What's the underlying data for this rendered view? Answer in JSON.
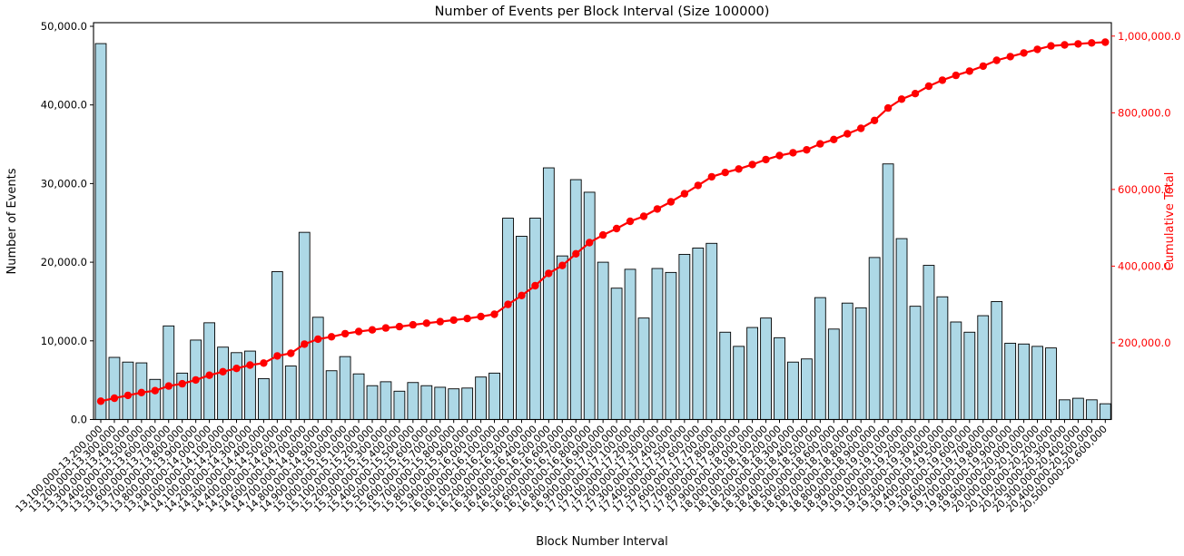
{
  "accent_colors": {
    "bar_fill": "#add8e6",
    "bar_edge": "#000000",
    "line_red": "#ff0000",
    "text": "#000000"
  },
  "chart_data": {
    "type": "bar",
    "combo": "bar+cumulative-line",
    "title": "Number of Events per Block Interval (Size 100000)",
    "xlabel": "Block Number Interval",
    "ylabel_left": "Number of Events",
    "ylabel_right": "Cumulative Total",
    "grid": false,
    "legend": "none",
    "ylim_left": [
      0,
      50460
    ],
    "ylim_right": [
      0,
      1035000
    ],
    "y_left_ticks": [
      {
        "value": 0,
        "label": "0.0"
      },
      {
        "value": 10000,
        "label": "10,000.0"
      },
      {
        "value": 20000,
        "label": "20,000.0"
      },
      {
        "value": 30000,
        "label": "30,000.0"
      },
      {
        "value": 40000,
        "label": "40,000.0"
      },
      {
        "value": 50000,
        "label": "50,000.0"
      }
    ],
    "y_right_ticks": [
      {
        "value": 200000,
        "label": "200,000.0"
      },
      {
        "value": 400000,
        "label": "400,000.0"
      },
      {
        "value": 600000,
        "label": "600,000.0"
      },
      {
        "value": 800000,
        "label": "800,000.0"
      },
      {
        "value": 1000000,
        "label": "1,000,000.0"
      }
    ],
    "categories": [
      "13,100,000-13,200,000",
      "13,200,000-13,300,000",
      "13,300,000-13,400,000",
      "13,400,000-13,500,000",
      "13,500,000-13,600,000",
      "13,600,000-13,700,000",
      "13,700,000-13,800,000",
      "13,800,000-13,900,000",
      "13,900,000-14,000,000",
      "14,000,000-14,100,000",
      "14,100,000-14,200,000",
      "14,200,000-14,300,000",
      "14,300,000-14,400,000",
      "14,400,000-14,500,000",
      "14,500,000-14,600,000",
      "14,600,000-14,700,000",
      "14,700,000-14,800,000",
      "14,800,000-14,900,000",
      "14,900,000-15,000,000",
      "15,000,000-15,100,000",
      "15,100,000-15,200,000",
      "15,200,000-15,300,000",
      "15,300,000-15,400,000",
      "15,400,000-15,500,000",
      "15,500,000-15,600,000",
      "15,600,000-15,700,000",
      "15,700,000-15,800,000",
      "15,800,000-15,900,000",
      "15,900,000-16,000,000",
      "16,000,000-16,100,000",
      "16,100,000-16,200,000",
      "16,200,000-16,300,000",
      "16,300,000-16,400,000",
      "16,400,000-16,500,000",
      "16,500,000-16,600,000",
      "16,600,000-16,700,000",
      "16,700,000-16,800,000",
      "16,800,000-16,900,000",
      "16,900,000-17,000,000",
      "17,000,000-17,100,000",
      "17,100,000-17,200,000",
      "17,200,000-17,300,000",
      "17,300,000-17,400,000",
      "17,400,000-17,500,000",
      "17,500,000-17,600,000",
      "17,600,000-17,700,000",
      "17,700,000-17,800,000",
      "17,800,000-17,900,000",
      "17,900,000-18,000,000",
      "18,000,000-18,100,000",
      "18,100,000-18,200,000",
      "18,200,000-18,300,000",
      "18,300,000-18,400,000",
      "18,400,000-18,500,000",
      "18,500,000-18,600,000",
      "18,600,000-18,700,000",
      "18,700,000-18,800,000",
      "18,800,000-18,900,000",
      "18,900,000-19,000,000",
      "19,000,000-19,100,000",
      "19,100,000-19,200,000",
      "19,200,000-19,300,000",
      "19,300,000-19,400,000",
      "19,400,000-19,500,000",
      "19,500,000-19,600,000",
      "19,600,000-19,700,000",
      "19,700,000-19,800,000",
      "19,800,000-19,900,000",
      "19,900,000-20,000,000",
      "20,000,000-20,100,000",
      "20,100,000-20,200,000",
      "20,200,000-20,300,000",
      "20,300,000-20,400,000",
      "20,400,000-20,500,000",
      "20,500,000-20,600,000"
    ],
    "series": [
      {
        "name": "Number of Events",
        "kind": "bar",
        "color": "#add8e6",
        "values": [
          47800,
          7900,
          7300,
          7200,
          5100,
          11900,
          5900,
          10100,
          12300,
          9200,
          8500,
          8700,
          5200,
          18800,
          6800,
          23800,
          13000,
          6200,
          8000,
          5800,
          4300,
          4800,
          3600,
          4700,
          4300,
          4100,
          3900,
          4000,
          5400,
          5900,
          25600,
          23300,
          25600,
          32000,
          20800,
          30500,
          28900,
          20000,
          16700,
          19100,
          12900,
          19200,
          18700,
          21000,
          21800,
          22400,
          11100,
          9300,
          11700,
          12900,
          10400,
          7300,
          7700,
          15500,
          11500,
          14800,
          14200,
          20600,
          32500,
          23000,
          14400,
          19600,
          15600,
          12400,
          11100,
          13200,
          15000,
          9700,
          9600,
          9300,
          9100,
          2500,
          2700,
          2500,
          2000
        ]
      },
      {
        "name": "Cumulative Total",
        "kind": "line",
        "color": "#ff0000",
        "values": [
          47800,
          55700,
          63000,
          70200,
          75300,
          87200,
          93100,
          103200,
          115500,
          124700,
          133200,
          141900,
          147100,
          165900,
          172700,
          196500,
          209500,
          215700,
          223700,
          229500,
          233800,
          238600,
          242200,
          246900,
          251200,
          255300,
          259200,
          263200,
          268600,
          274500,
          300100,
          323400,
          349000,
          381000,
          401800,
          432300,
          461200,
          481200,
          497900,
          517000,
          529900,
          549100,
          567800,
          588800,
          610600,
          633000,
          644100,
          653400,
          665100,
          678000,
          688400,
          695700,
          703400,
          718900,
          730400,
          745200,
          759400,
          780000,
          812500,
          835500,
          849900,
          869500,
          885100,
          897500,
          908600,
          921800,
          936800,
          946500,
          956100,
          965400,
          974500,
          977000,
          979700,
          982200,
          984200
        ]
      }
    ]
  }
}
